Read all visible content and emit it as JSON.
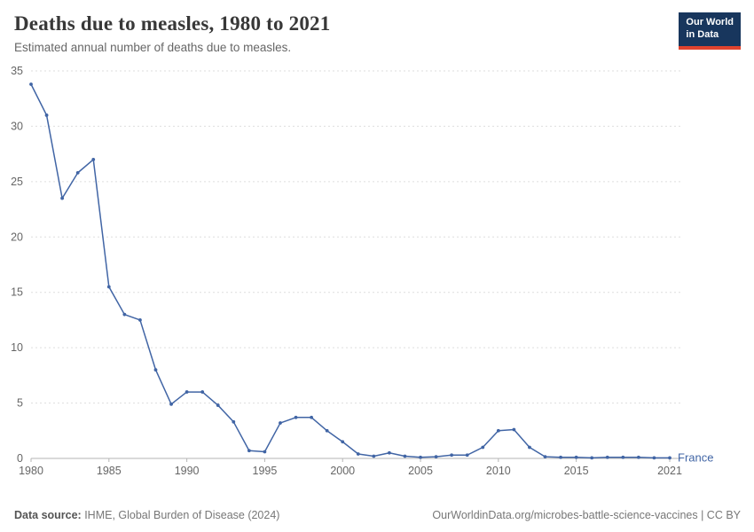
{
  "header": {
    "title": "Deaths due to measles, 1980 to 2021",
    "subtitle": "Estimated annual number of deaths due to measles.",
    "logo": {
      "line1": "Our World",
      "line2": "in Data",
      "bg": "#18365d",
      "accent": "#e0432e"
    }
  },
  "chart_data": {
    "type": "line",
    "title": "Deaths due to measles, 1980 to 2021",
    "xlabel": "",
    "ylabel": "",
    "xlim": [
      1980,
      2021
    ],
    "ylim": [
      0,
      35
    ],
    "yticks": [
      0,
      5,
      10,
      15,
      20,
      25,
      30,
      35
    ],
    "xticks": [
      1980,
      1985,
      1990,
      1995,
      2000,
      2005,
      2010,
      2015,
      2021
    ],
    "grid": "horizontal-dashed",
    "legend_position": "end-of-line-label",
    "series": [
      {
        "name": "France",
        "color": "#4165a5",
        "x": [
          1980,
          1981,
          1982,
          1983,
          1984,
          1985,
          1986,
          1987,
          1988,
          1989,
          1990,
          1991,
          1992,
          1993,
          1994,
          1995,
          1996,
          1997,
          1998,
          1999,
          2000,
          2001,
          2002,
          2003,
          2004,
          2005,
          2006,
          2007,
          2008,
          2009,
          2010,
          2011,
          2012,
          2013,
          2014,
          2015,
          2016,
          2017,
          2018,
          2019,
          2020,
          2021
        ],
        "values": [
          33.8,
          31,
          23.5,
          25.8,
          27,
          15.5,
          13,
          12.5,
          8,
          4.9,
          6,
          6,
          4.8,
          3.3,
          0.7,
          0.6,
          3.2,
          3.7,
          3.7,
          2.5,
          1.5,
          0.4,
          0.2,
          0.5,
          0.2,
          0.1,
          0.15,
          0.3,
          0.3,
          1,
          2.5,
          2.6,
          1,
          0.15,
          0.1,
          0.1,
          0.05,
          0.1,
          0.1,
          0.1,
          0.05,
          0.05
        ]
      }
    ]
  },
  "footer": {
    "source_label": "Data source:",
    "source_text": " IHME, Global Burden of Disease (2024)",
    "credit": "OurWorldinData.org/microbes-battle-science-vaccines | CC BY"
  }
}
